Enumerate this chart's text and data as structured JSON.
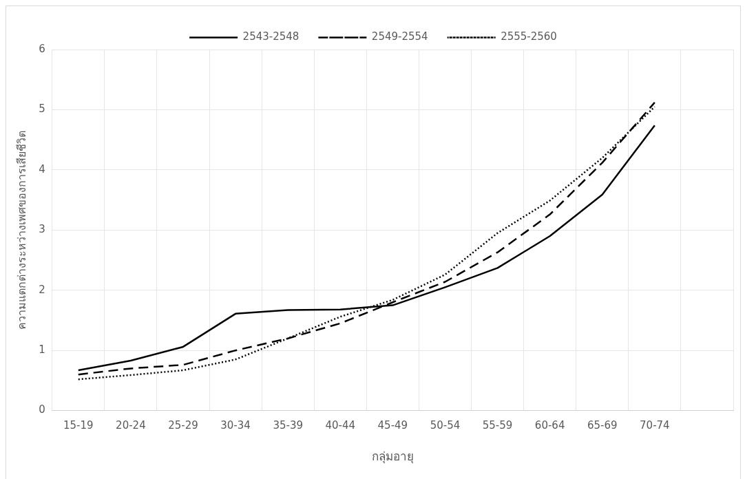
{
  "chart_data": {
    "type": "line",
    "xlabel": "กลุ่มอายุ",
    "ylabel": "ความแตกต่างระหว่างเพศของการเสียชีวิต",
    "categories": [
      "15-19",
      "20-24",
      "25-29",
      "30-34",
      "35-39",
      "40-44",
      "45-49",
      "50-54",
      "55-59",
      "60-64",
      "65-69",
      "70-74",
      null
    ],
    "series": [
      {
        "name": "2543-2548",
        "color": "#000000",
        "line_style": "solid",
        "values": [
          0.67,
          0.83,
          1.06,
          1.61,
          1.67,
          1.68,
          1.75,
          2.05,
          2.37,
          2.9,
          3.59,
          4.74,
          null
        ]
      },
      {
        "name": "2549-2554",
        "color": "#000000",
        "line_style": "dashed",
        "values": [
          0.6,
          0.7,
          0.76,
          1.0,
          1.2,
          1.45,
          1.8,
          2.14,
          2.63,
          3.26,
          4.12,
          5.12,
          null
        ]
      },
      {
        "name": "2555-2560",
        "color": "#000000",
        "line_style": "dotted",
        "values": [
          0.52,
          0.59,
          0.67,
          0.85,
          1.2,
          1.56,
          1.84,
          2.26,
          2.95,
          3.49,
          4.2,
          5.05,
          null
        ]
      }
    ],
    "ylim": [
      0,
      6
    ],
    "yticks": [
      0,
      1,
      2,
      3,
      4,
      5,
      6
    ],
    "grid": true,
    "legend": "top",
    "marker": "none"
  }
}
